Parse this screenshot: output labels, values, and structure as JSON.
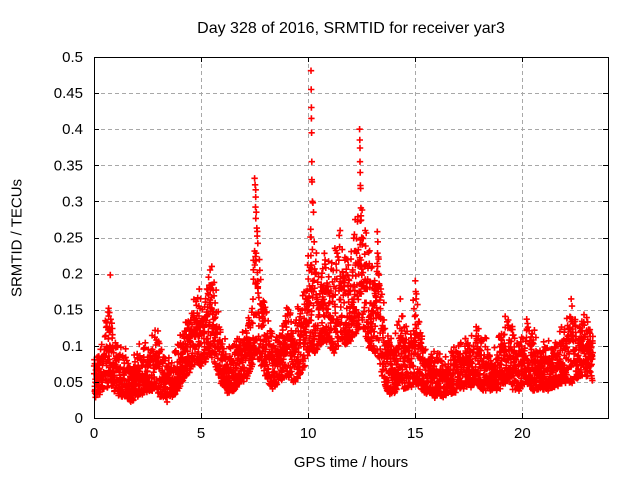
{
  "chart_data": {
    "type": "scatter",
    "title": "Day 328 of 2016, SRMTID for receiver yar3",
    "xlabel": "GPS time / hours",
    "ylabel": "SRMTID / TECUs",
    "xlim": [
      0,
      24
    ],
    "ylim": [
      0,
      0.5
    ],
    "xticks": [
      [
        0,
        "0"
      ],
      [
        5,
        "5"
      ],
      [
        10,
        "10"
      ],
      [
        15,
        "15"
      ],
      [
        20,
        "20"
      ]
    ],
    "yticks": [
      [
        0,
        "0"
      ],
      [
        0.05,
        "0.05"
      ],
      [
        0.1,
        "0.1"
      ],
      [
        0.15,
        "0.15"
      ],
      [
        0.2,
        "0.2"
      ],
      [
        0.25,
        "0.25"
      ],
      [
        0.3,
        "0.3"
      ],
      [
        0.35,
        "0.35"
      ],
      [
        0.4,
        "0.4"
      ],
      [
        0.45,
        "0.45"
      ],
      [
        0.5,
        "0.5"
      ]
    ],
    "grid": true,
    "legend": "none",
    "marker": "plus",
    "colors": {
      "marker": "#ff0000",
      "grid": "#a8a8a8",
      "border": "#000000",
      "background": "#ffffff",
      "text": "#000000"
    },
    "time_start_hours": 0.0,
    "time_end_hours": 23.3,
    "envelope_t_lo_hi": [
      [
        0.0,
        0.03,
        0.1
      ],
      [
        0.2,
        0.03,
        0.09
      ],
      [
        0.45,
        0.04,
        0.11
      ],
      [
        0.6,
        0.04,
        0.15
      ],
      [
        0.75,
        0.05,
        0.16
      ],
      [
        0.9,
        0.04,
        0.12
      ],
      [
        1.1,
        0.03,
        0.1
      ],
      [
        1.4,
        0.03,
        0.09
      ],
      [
        1.7,
        0.025,
        0.08
      ],
      [
        2.0,
        0.03,
        0.09
      ],
      [
        2.3,
        0.035,
        0.1
      ],
      [
        2.6,
        0.04,
        0.11
      ],
      [
        2.9,
        0.04,
        0.12
      ],
      [
        3.1,
        0.03,
        0.1
      ],
      [
        3.4,
        0.025,
        0.08
      ],
      [
        3.7,
        0.03,
        0.08
      ],
      [
        3.9,
        0.04,
        0.1
      ],
      [
        4.1,
        0.05,
        0.12
      ],
      [
        4.35,
        0.06,
        0.13
      ],
      [
        4.6,
        0.07,
        0.16
      ],
      [
        4.8,
        0.08,
        0.18
      ],
      [
        5.0,
        0.07,
        0.16
      ],
      [
        5.2,
        0.08,
        0.17
      ],
      [
        5.45,
        0.09,
        0.2
      ],
      [
        5.6,
        0.08,
        0.19
      ],
      [
        5.8,
        0.06,
        0.15
      ],
      [
        6.0,
        0.04,
        0.11
      ],
      [
        6.3,
        0.035,
        0.09
      ],
      [
        6.6,
        0.04,
        0.1
      ],
      [
        6.9,
        0.05,
        0.11
      ],
      [
        7.1,
        0.05,
        0.12
      ],
      [
        7.35,
        0.07,
        0.17
      ],
      [
        7.55,
        0.09,
        0.3
      ],
      [
        7.7,
        0.08,
        0.25
      ],
      [
        7.85,
        0.07,
        0.16
      ],
      [
        8.1,
        0.05,
        0.14
      ],
      [
        8.4,
        0.04,
        0.11
      ],
      [
        8.7,
        0.05,
        0.12
      ],
      [
        9.0,
        0.06,
        0.15
      ],
      [
        9.3,
        0.05,
        0.14
      ],
      [
        9.6,
        0.06,
        0.15
      ],
      [
        9.85,
        0.07,
        0.18
      ],
      [
        10.1,
        0.1,
        0.27
      ],
      [
        10.3,
        0.09,
        0.22
      ],
      [
        10.5,
        0.1,
        0.21
      ],
      [
        10.75,
        0.11,
        0.23
      ],
      [
        11.0,
        0.1,
        0.22
      ],
      [
        11.25,
        0.09,
        0.23
      ],
      [
        11.5,
        0.11,
        0.25
      ],
      [
        11.75,
        0.1,
        0.23
      ],
      [
        12.0,
        0.11,
        0.26
      ],
      [
        12.2,
        0.12,
        0.28
      ],
      [
        12.42,
        0.12,
        0.3
      ],
      [
        12.6,
        0.11,
        0.26
      ],
      [
        12.8,
        0.1,
        0.23
      ],
      [
        13.0,
        0.09,
        0.22
      ],
      [
        13.25,
        0.09,
        0.24
      ],
      [
        13.45,
        0.06,
        0.17
      ],
      [
        13.65,
        0.04,
        0.12
      ],
      [
        13.9,
        0.03,
        0.1
      ],
      [
        14.1,
        0.04,
        0.12
      ],
      [
        14.3,
        0.05,
        0.16
      ],
      [
        14.5,
        0.04,
        0.13
      ],
      [
        14.75,
        0.04,
        0.11
      ],
      [
        15.0,
        0.05,
        0.18
      ],
      [
        15.2,
        0.04,
        0.13
      ],
      [
        15.5,
        0.035,
        0.1
      ],
      [
        15.9,
        0.03,
        0.09
      ],
      [
        16.3,
        0.03,
        0.08
      ],
      [
        16.7,
        0.035,
        0.09
      ],
      [
        17.1,
        0.04,
        0.1
      ],
      [
        17.5,
        0.04,
        0.11
      ],
      [
        17.8,
        0.05,
        0.13
      ],
      [
        18.1,
        0.04,
        0.11
      ],
      [
        18.5,
        0.04,
        0.1
      ],
      [
        18.9,
        0.04,
        0.11
      ],
      [
        19.3,
        0.05,
        0.14
      ],
      [
        19.6,
        0.04,
        0.12
      ],
      [
        19.9,
        0.04,
        0.11
      ],
      [
        20.2,
        0.05,
        0.14
      ],
      [
        20.5,
        0.04,
        0.12
      ],
      [
        20.9,
        0.04,
        0.1
      ],
      [
        21.3,
        0.04,
        0.1
      ],
      [
        21.7,
        0.045,
        0.11
      ],
      [
        22.0,
        0.05,
        0.13
      ],
      [
        22.3,
        0.05,
        0.15
      ],
      [
        22.6,
        0.055,
        0.13
      ],
      [
        22.9,
        0.06,
        0.14
      ],
      [
        23.1,
        0.06,
        0.13
      ],
      [
        23.3,
        0.05,
        0.11
      ]
    ],
    "spike_points_t_v": [
      [
        0.68,
        0.152
      ],
      [
        0.72,
        0.146
      ],
      [
        0.76,
        0.198
      ],
      [
        5.35,
        0.195
      ],
      [
        5.42,
        0.205
      ],
      [
        5.5,
        0.21
      ],
      [
        7.5,
        0.332
      ],
      [
        7.52,
        0.323
      ],
      [
        7.55,
        0.316
      ],
      [
        7.55,
        0.306
      ],
      [
        7.58,
        0.285
      ],
      [
        7.6,
        0.263
      ],
      [
        7.62,
        0.252
      ],
      [
        7.65,
        0.242
      ],
      [
        10.13,
        0.481
      ],
      [
        10.14,
        0.455
      ],
      [
        10.15,
        0.43
      ],
      [
        10.15,
        0.415
      ],
      [
        10.16,
        0.395
      ],
      [
        10.17,
        0.355
      ],
      [
        10.17,
        0.33
      ],
      [
        10.18,
        0.327
      ],
      [
        10.2,
        0.3
      ],
      [
        10.22,
        0.298
      ],
      [
        10.25,
        0.285
      ],
      [
        10.28,
        0.244
      ],
      [
        11.25,
        0.235
      ],
      [
        11.3,
        0.232
      ],
      [
        12.4,
        0.4
      ],
      [
        12.41,
        0.385
      ],
      [
        12.42,
        0.374
      ],
      [
        12.42,
        0.355
      ],
      [
        12.43,
        0.34
      ],
      [
        12.44,
        0.322
      ],
      [
        12.45,
        0.318
      ],
      [
        12.46,
        0.291
      ],
      [
        12.47,
        0.274
      ],
      [
        12.5,
        0.25
      ],
      [
        12.52,
        0.24
      ],
      [
        13.23,
        0.258
      ],
      [
        13.25,
        0.244
      ],
      [
        13.28,
        0.223
      ],
      [
        14.3,
        0.165
      ],
      [
        15.0,
        0.19
      ],
      [
        15.02,
        0.175
      ],
      [
        15.04,
        0.165
      ],
      [
        22.28,
        0.165
      ],
      [
        22.32,
        0.155
      ]
    ]
  }
}
